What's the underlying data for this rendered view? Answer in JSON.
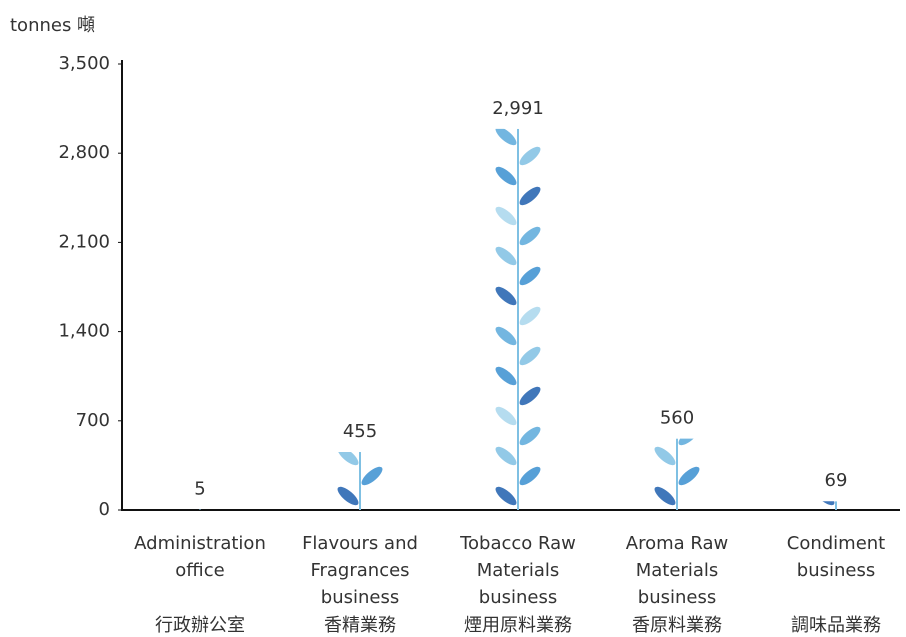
{
  "chart_data": {
    "type": "bar",
    "y_axis_label": "tonnes 噸",
    "categories": [
      "Administration office",
      "Flavours and Fragrances business",
      "Tobacco Raw Materials business",
      "Aroma Raw Materials business",
      "Condiment business"
    ],
    "categories_zh": [
      "行政辦公室",
      "香精業務",
      "煙用原料業務",
      "香原料業務",
      "調味品業務"
    ],
    "values": [
      5,
      455,
      2991,
      560,
      69
    ],
    "value_labels": [
      "5",
      "455",
      "2,991",
      "560",
      "69"
    ],
    "colors": [
      "#1f5fae",
      "#3a8fd0",
      "#7fc0e3",
      "#5aa9da",
      "#a8d6ec"
    ],
    "ylim": [
      0,
      3500
    ],
    "yticks": [
      0,
      700,
      {
        "value": 1400,
        "label": "1,400"
      },
      {
        "value": 2100,
        "label": "2,100"
      },
      {
        "value": 2800,
        "label": "2,800"
      },
      {
        "value": 3500,
        "label": "3,500"
      }
    ]
  }
}
